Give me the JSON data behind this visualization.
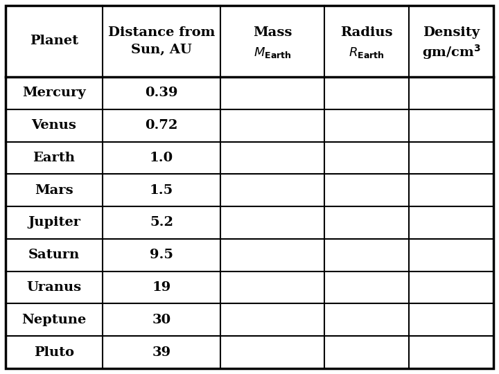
{
  "rows": [
    [
      "Mercury",
      "0.39",
      "",
      "",
      ""
    ],
    [
      "Venus",
      "0.72",
      "",
      "",
      ""
    ],
    [
      "Earth",
      "1.0",
      "",
      "",
      ""
    ],
    [
      "Mars",
      "1.5",
      "",
      "",
      ""
    ],
    [
      "Jupiter",
      "5.2",
      "",
      "",
      ""
    ],
    [
      "Saturn",
      "9.5",
      "",
      "",
      ""
    ],
    [
      "Uranus",
      "19",
      "",
      "",
      ""
    ],
    [
      "Neptune",
      "30",
      "",
      "",
      ""
    ],
    [
      "Pluto",
      "39",
      "",
      "",
      ""
    ]
  ],
  "background_color": "#ffffff",
  "border_color": "#000000",
  "text_color": "#000000",
  "header_font_size": 14,
  "cell_font_size": 14,
  "fig_width": 7.2,
  "fig_height": 5.4,
  "dpi": 100
}
